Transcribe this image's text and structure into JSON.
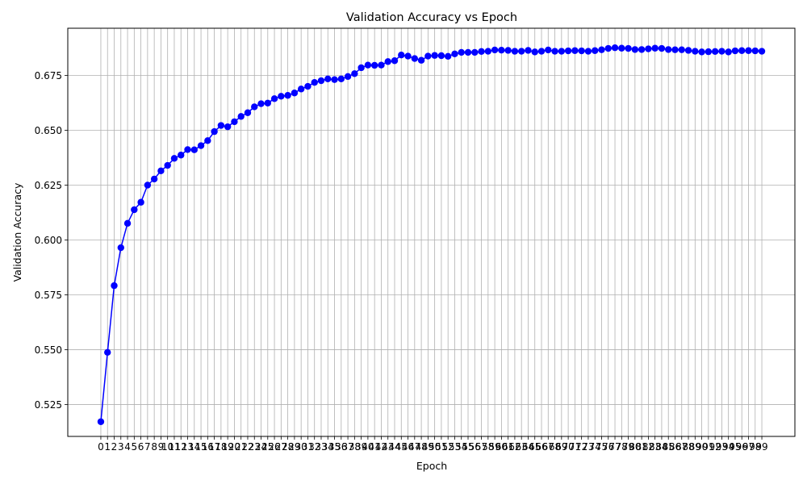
{
  "chart_data": {
    "type": "line",
    "title": "Validation Accuracy vs Epoch",
    "xlabel": "Epoch",
    "ylabel": "Validation Accuracy",
    "x": [
      0,
      1,
      2,
      3,
      4,
      5,
      6,
      7,
      8,
      9,
      10,
      11,
      12,
      13,
      14,
      15,
      16,
      17,
      18,
      19,
      20,
      21,
      22,
      23,
      24,
      25,
      26,
      27,
      28,
      29,
      30,
      31,
      32,
      33,
      34,
      35,
      36,
      37,
      38,
      39,
      40,
      41,
      42,
      43,
      44,
      45,
      46,
      47,
      48,
      49,
      50,
      51,
      52,
      53,
      54,
      55,
      56,
      57,
      58,
      59,
      60,
      61,
      62,
      63,
      64,
      65,
      66,
      67,
      68,
      69,
      70,
      71,
      72,
      73,
      74,
      75,
      76,
      77,
      78,
      79,
      80,
      81,
      82,
      83,
      84,
      85,
      86,
      87,
      88,
      89,
      90,
      91,
      92,
      93,
      94,
      95,
      96,
      97,
      98,
      99
    ],
    "xtick_labels": [
      "0",
      "1",
      "2",
      "3",
      "4",
      "5",
      "6",
      "7",
      "8",
      "9",
      "10",
      "11",
      "12",
      "13",
      "14",
      "15",
      "16",
      "17",
      "18",
      "19",
      "20",
      "21",
      "22",
      "23",
      "24",
      "25",
      "26",
      "27",
      "28",
      "29",
      "30",
      "31",
      "32",
      "33",
      "34",
      "35",
      "36",
      "37",
      "38",
      "39",
      "40",
      "41",
      "42",
      "43",
      "44",
      "45",
      "46",
      "47",
      "48",
      "49",
      "50",
      "51",
      "52",
      "53",
      "54",
      "55",
      "56",
      "57",
      "58",
      "59",
      "60",
      "61",
      "62",
      "63",
      "64",
      "65",
      "66",
      "67",
      "68",
      "69",
      "70",
      "71",
      "72",
      "73",
      "74",
      "75",
      "76",
      "77",
      "78",
      "79",
      "80",
      "81",
      "82",
      "83",
      "84",
      "85",
      "86",
      "87",
      "88",
      "89",
      "90",
      "91",
      "92",
      "93",
      "94",
      "95",
      "96",
      "97",
      "98",
      "99"
    ],
    "series": [
      {
        "name": "",
        "color": "#0000ff",
        "values": [
          0.5172,
          0.5488,
          0.5792,
          0.5965,
          0.6076,
          0.6138,
          0.6172,
          0.625,
          0.6278,
          0.6315,
          0.634,
          0.6372,
          0.6387,
          0.6412,
          0.6411,
          0.643,
          0.6453,
          0.6494,
          0.6522,
          0.6516,
          0.6539,
          0.6563,
          0.658,
          0.6607,
          0.6621,
          0.6624,
          0.6644,
          0.6655,
          0.6659,
          0.667,
          0.6688,
          0.67,
          0.6718,
          0.6726,
          0.6734,
          0.6731,
          0.6734,
          0.6745,
          0.6758,
          0.6785,
          0.6797,
          0.6796,
          0.6797,
          0.6813,
          0.6817,
          0.6843,
          0.6838,
          0.6827,
          0.6819,
          0.6838,
          0.6841,
          0.684,
          0.6837,
          0.6848,
          0.6855,
          0.6855,
          0.6855,
          0.6859,
          0.686,
          0.6866,
          0.6865,
          0.6864,
          0.686,
          0.686,
          0.6864,
          0.6857,
          0.686,
          0.6866,
          0.686,
          0.686,
          0.6862,
          0.6863,
          0.6862,
          0.686,
          0.6863,
          0.6867,
          0.6873,
          0.6876,
          0.6874,
          0.6873,
          0.6868,
          0.6868,
          0.6871,
          0.6874,
          0.6873,
          0.6868,
          0.6867,
          0.6867,
          0.6864,
          0.686,
          0.6857,
          0.6858,
          0.6859,
          0.686,
          0.6857,
          0.6862,
          0.6863,
          0.6863,
          0.6862,
          0.686
        ]
      }
    ],
    "ylim": [
      0.5105,
      0.6965
    ],
    "yticks": [
      0.525,
      0.55,
      0.575,
      0.6,
      0.625,
      0.65,
      0.675
    ],
    "ytick_labels": [
      "0.525",
      "0.550",
      "0.575",
      "0.600",
      "0.625",
      "0.650",
      "0.675"
    ],
    "xlim": [
      -4.95,
      103.95
    ],
    "grid": true,
    "marker": "circle",
    "legend": "none"
  }
}
